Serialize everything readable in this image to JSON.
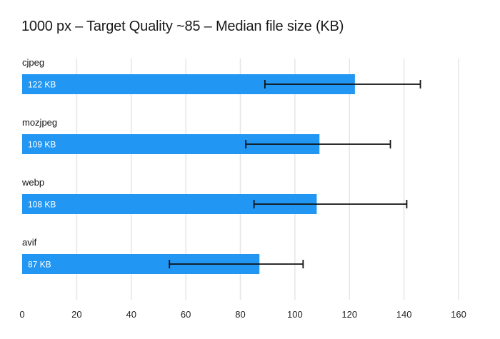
{
  "title": "1000 px – Target Quality ~85 – Median file size (KB)",
  "colors": {
    "bar": "#2196f3",
    "grid": "#e6e6e6",
    "error_bar": "#111111",
    "value_text": "#ffffff"
  },
  "chart_data": {
    "type": "bar",
    "orientation": "horizontal",
    "title": "1000 px – Target Quality ~85 – Median file size (KB)",
    "xlabel": "",
    "ylabel": "",
    "categories": [
      "cjpeg",
      "mozjpeg",
      "webp",
      "avif"
    ],
    "values": [
      122,
      109,
      108,
      87
    ],
    "value_labels": [
      "122 KB",
      "109 KB",
      "108 KB",
      "87 KB"
    ],
    "error_low": [
      89,
      82,
      85,
      54
    ],
    "error_high": [
      146,
      135,
      141,
      103
    ],
    "xlim": [
      0,
      160
    ],
    "x_ticks": [
      0,
      20,
      40,
      60,
      80,
      100,
      120,
      140,
      160
    ],
    "grid": true,
    "legend": "none"
  }
}
